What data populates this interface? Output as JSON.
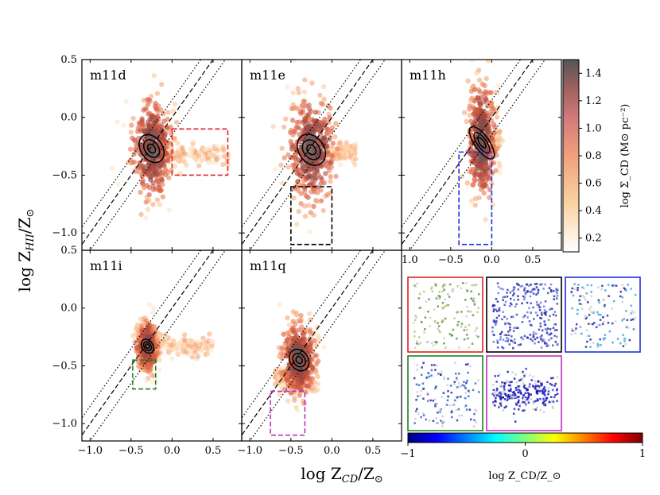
{
  "chart_data": {
    "type": "scatter",
    "x_axis_title": "log Z_CD/Z_⊙",
    "y_axis_title": "log Z_HII/Z_⊙",
    "xlim": [
      -1.1,
      0.85
    ],
    "ylim": [
      -1.15,
      0.5
    ],
    "x_ticks": [
      "−1.0",
      "−0.5",
      "0.0",
      "0.5"
    ],
    "x_ticks_top_right": [
      "1.0",
      "−0.5",
      "0.0",
      "0.5"
    ],
    "y_ticks": [
      "0.5",
      "0.0",
      "−0.5",
      "−1.0"
    ],
    "y_ticks_lower": [
      "0.0",
      "−0.5",
      "−1.0"
    ],
    "one_to_one_line": {
      "slope": 1,
      "offset_dotted": 0.15
    },
    "panels": [
      {
        "name": "m11d",
        "center": [
          -0.25,
          -0.27
        ],
        "spread": [
          0.12,
          0.2
        ],
        "tail_x": [
          -0.1,
          0.7
        ],
        "tail_y": -0.32,
        "box": {
          "x": [
            0.0,
            0.68
          ],
          "y": [
            -0.5,
            -0.1
          ],
          "color": "#e02020"
        }
      },
      {
        "name": "m11e",
        "center": [
          -0.25,
          -0.28
        ],
        "spread": [
          0.14,
          0.22
        ],
        "tail_x": [
          -0.1,
          0.3
        ],
        "tail_y": -0.3,
        "box": {
          "x": [
            -0.5,
            0.0
          ],
          "y": [
            -1.1,
            -0.6
          ],
          "color": "#000000"
        }
      },
      {
        "name": "m11h",
        "center": [
          -0.12,
          -0.22
        ],
        "spread": [
          0.08,
          0.25
        ],
        "tail_x": [
          -0.1,
          0.1
        ],
        "tail_y": -0.2,
        "box": {
          "x": [
            -0.4,
            -0.0
          ],
          "y": [
            -1.1,
            -0.3
          ],
          "color": "#2030e0"
        }
      },
      {
        "name": "m11i",
        "center": [
          -0.3,
          -0.33
        ],
        "spread": [
          0.06,
          0.1
        ],
        "tail_x": [
          -0.2,
          0.5
        ],
        "tail_y": -0.33,
        "box": {
          "x": [
            -0.48,
            -0.2
          ],
          "y": [
            -0.7,
            -0.45
          ],
          "color": "#208020"
        }
      },
      {
        "name": "m11q",
        "center": [
          -0.4,
          -0.45
        ],
        "spread": [
          0.1,
          0.15
        ],
        "tail_x": [
          -0.7,
          -0.3
        ],
        "tail_y": -0.6,
        "box": {
          "x": [
            -0.75,
            -0.33
          ],
          "y": [
            -1.1,
            -0.72
          ],
          "color": "#c030c0"
        }
      }
    ],
    "colorbar_density": {
      "label": "log Σ_CD (M⊙ pc⁻²)",
      "ticks": [
        "1.4",
        "1.2",
        "1.0",
        "0.8",
        "0.6",
        "0.4",
        "0.2"
      ],
      "range": [
        0.1,
        1.5
      ]
    },
    "colorbar_metallicity": {
      "label": "log Z_CD/Z_⊙",
      "ticks": [
        "−1",
        "0",
        "1"
      ],
      "range": [
        -1,
        1
      ]
    },
    "inset_maps": [
      {
        "name": "m11d-map",
        "border": "#e02020"
      },
      {
        "name": "m11e-map",
        "border": "#000000"
      },
      {
        "name": "m11h-map",
        "border": "#2030e0"
      },
      {
        "name": "m11i-map",
        "border": "#208020"
      },
      {
        "name": "m11q-map",
        "border": "#c030c0"
      }
    ]
  }
}
